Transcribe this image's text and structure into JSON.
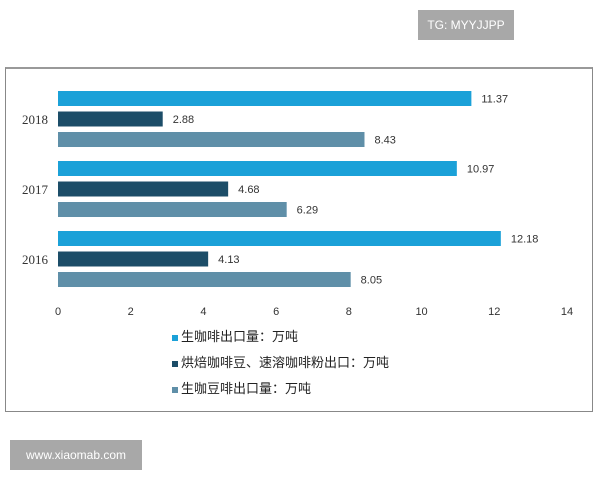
{
  "watermark_top": "TG: MYYJJPP",
  "watermark_bottom": "www.xiaomab.com",
  "chart_data": {
    "type": "bar",
    "orientation": "horizontal",
    "categories": [
      "2018",
      "2017",
      "2016"
    ],
    "series": [
      {
        "name": "生咖啡出口量：万吨",
        "color": "#1ba1d8",
        "values": [
          11.37,
          10.97,
          12.18
        ]
      },
      {
        "name": "烘焙咖啡豆、速溶咖啡粉出口：万吨",
        "color": "#1c4d68",
        "values": [
          2.88,
          4.68,
          4.13
        ]
      },
      {
        "name": "生咖豆啡出口量：万吨",
        "color": "#5f8fa8",
        "values": [
          8.43,
          6.29,
          8.05
        ]
      }
    ],
    "xlim": [
      0,
      14
    ],
    "xticks": [
      "0",
      "2",
      "4",
      "6",
      "8",
      "10",
      "12",
      "14"
    ],
    "grid": false,
    "legend_position": "bottom"
  }
}
